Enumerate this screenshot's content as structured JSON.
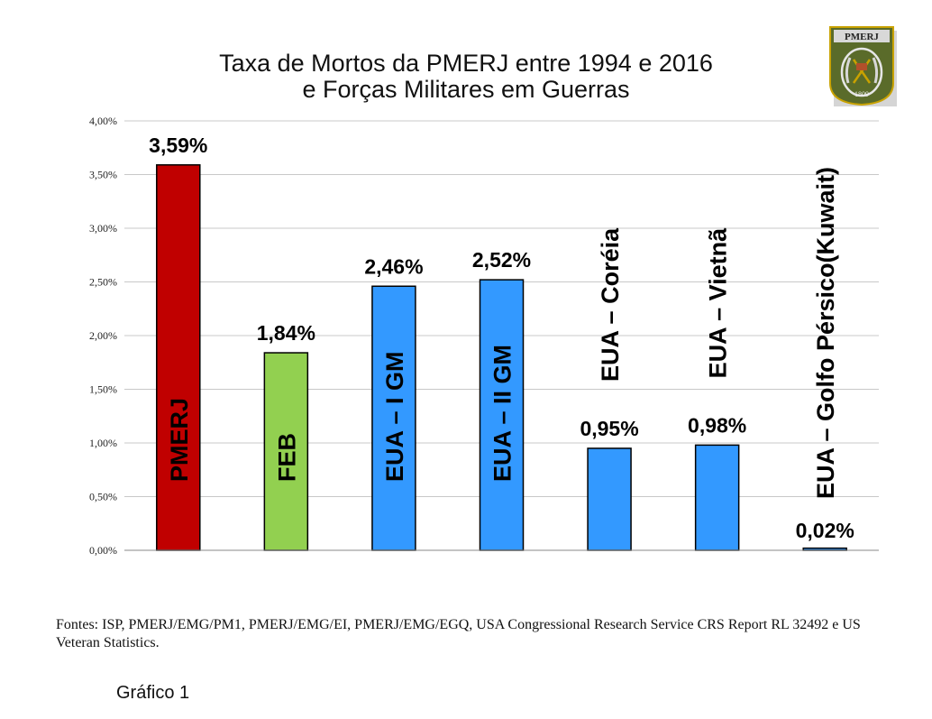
{
  "colors": {
    "pmerj": "#c00000",
    "feb": "#92d050",
    "eua": "#3399ff",
    "stroke": "#000000",
    "grid": "#c8c8c8"
  },
  "logo": {
    "text_top": "PMERJ",
    "text_bottom": "1809",
    "icon": "pmerj-crest-icon"
  },
  "source_text": "Fontes: ISP, PMERJ/EMG/PM1, PMERJ/EMG/EI, PMERJ/EMG/EGQ, USA Congressional Research Service CRS Report RL 32492 e US Veteran Statistics.",
  "caption": "Gráfico 1",
  "chart_data": {
    "type": "bar",
    "title_lines": [
      "Taxa de Mortos da PMERJ entre 1994 e 2016",
      "e Forças Militares em Guerras"
    ],
    "xlabel": "",
    "ylabel": "",
    "ylim": [
      0,
      4
    ],
    "yticks": [
      "0,00%",
      "0,50%",
      "1,00%",
      "1,50%",
      "2,00%",
      "2,50%",
      "3,00%",
      "3,50%",
      "4,00%"
    ],
    "grid": true,
    "legend": "none",
    "categories": [
      "PMERJ",
      "FEB",
      "EUA – I GM",
      "EUA – II GM",
      "EUA – Coréia",
      "EUA – Vietnã",
      "EUA – Golfo Pérsico(Kuwait)"
    ],
    "values": [
      3.59,
      1.84,
      2.46,
      2.52,
      0.95,
      0.98,
      0.02
    ],
    "data_labels": [
      "3,59%",
      "1,84%",
      "2,46%",
      "2,52%",
      "0,95%",
      "0,98%",
      "0,02%"
    ],
    "bar_colors": [
      "#c00000",
      "#92d050",
      "#3399ff",
      "#3399ff",
      "#3399ff",
      "#3399ff",
      "#3399ff"
    ]
  }
}
